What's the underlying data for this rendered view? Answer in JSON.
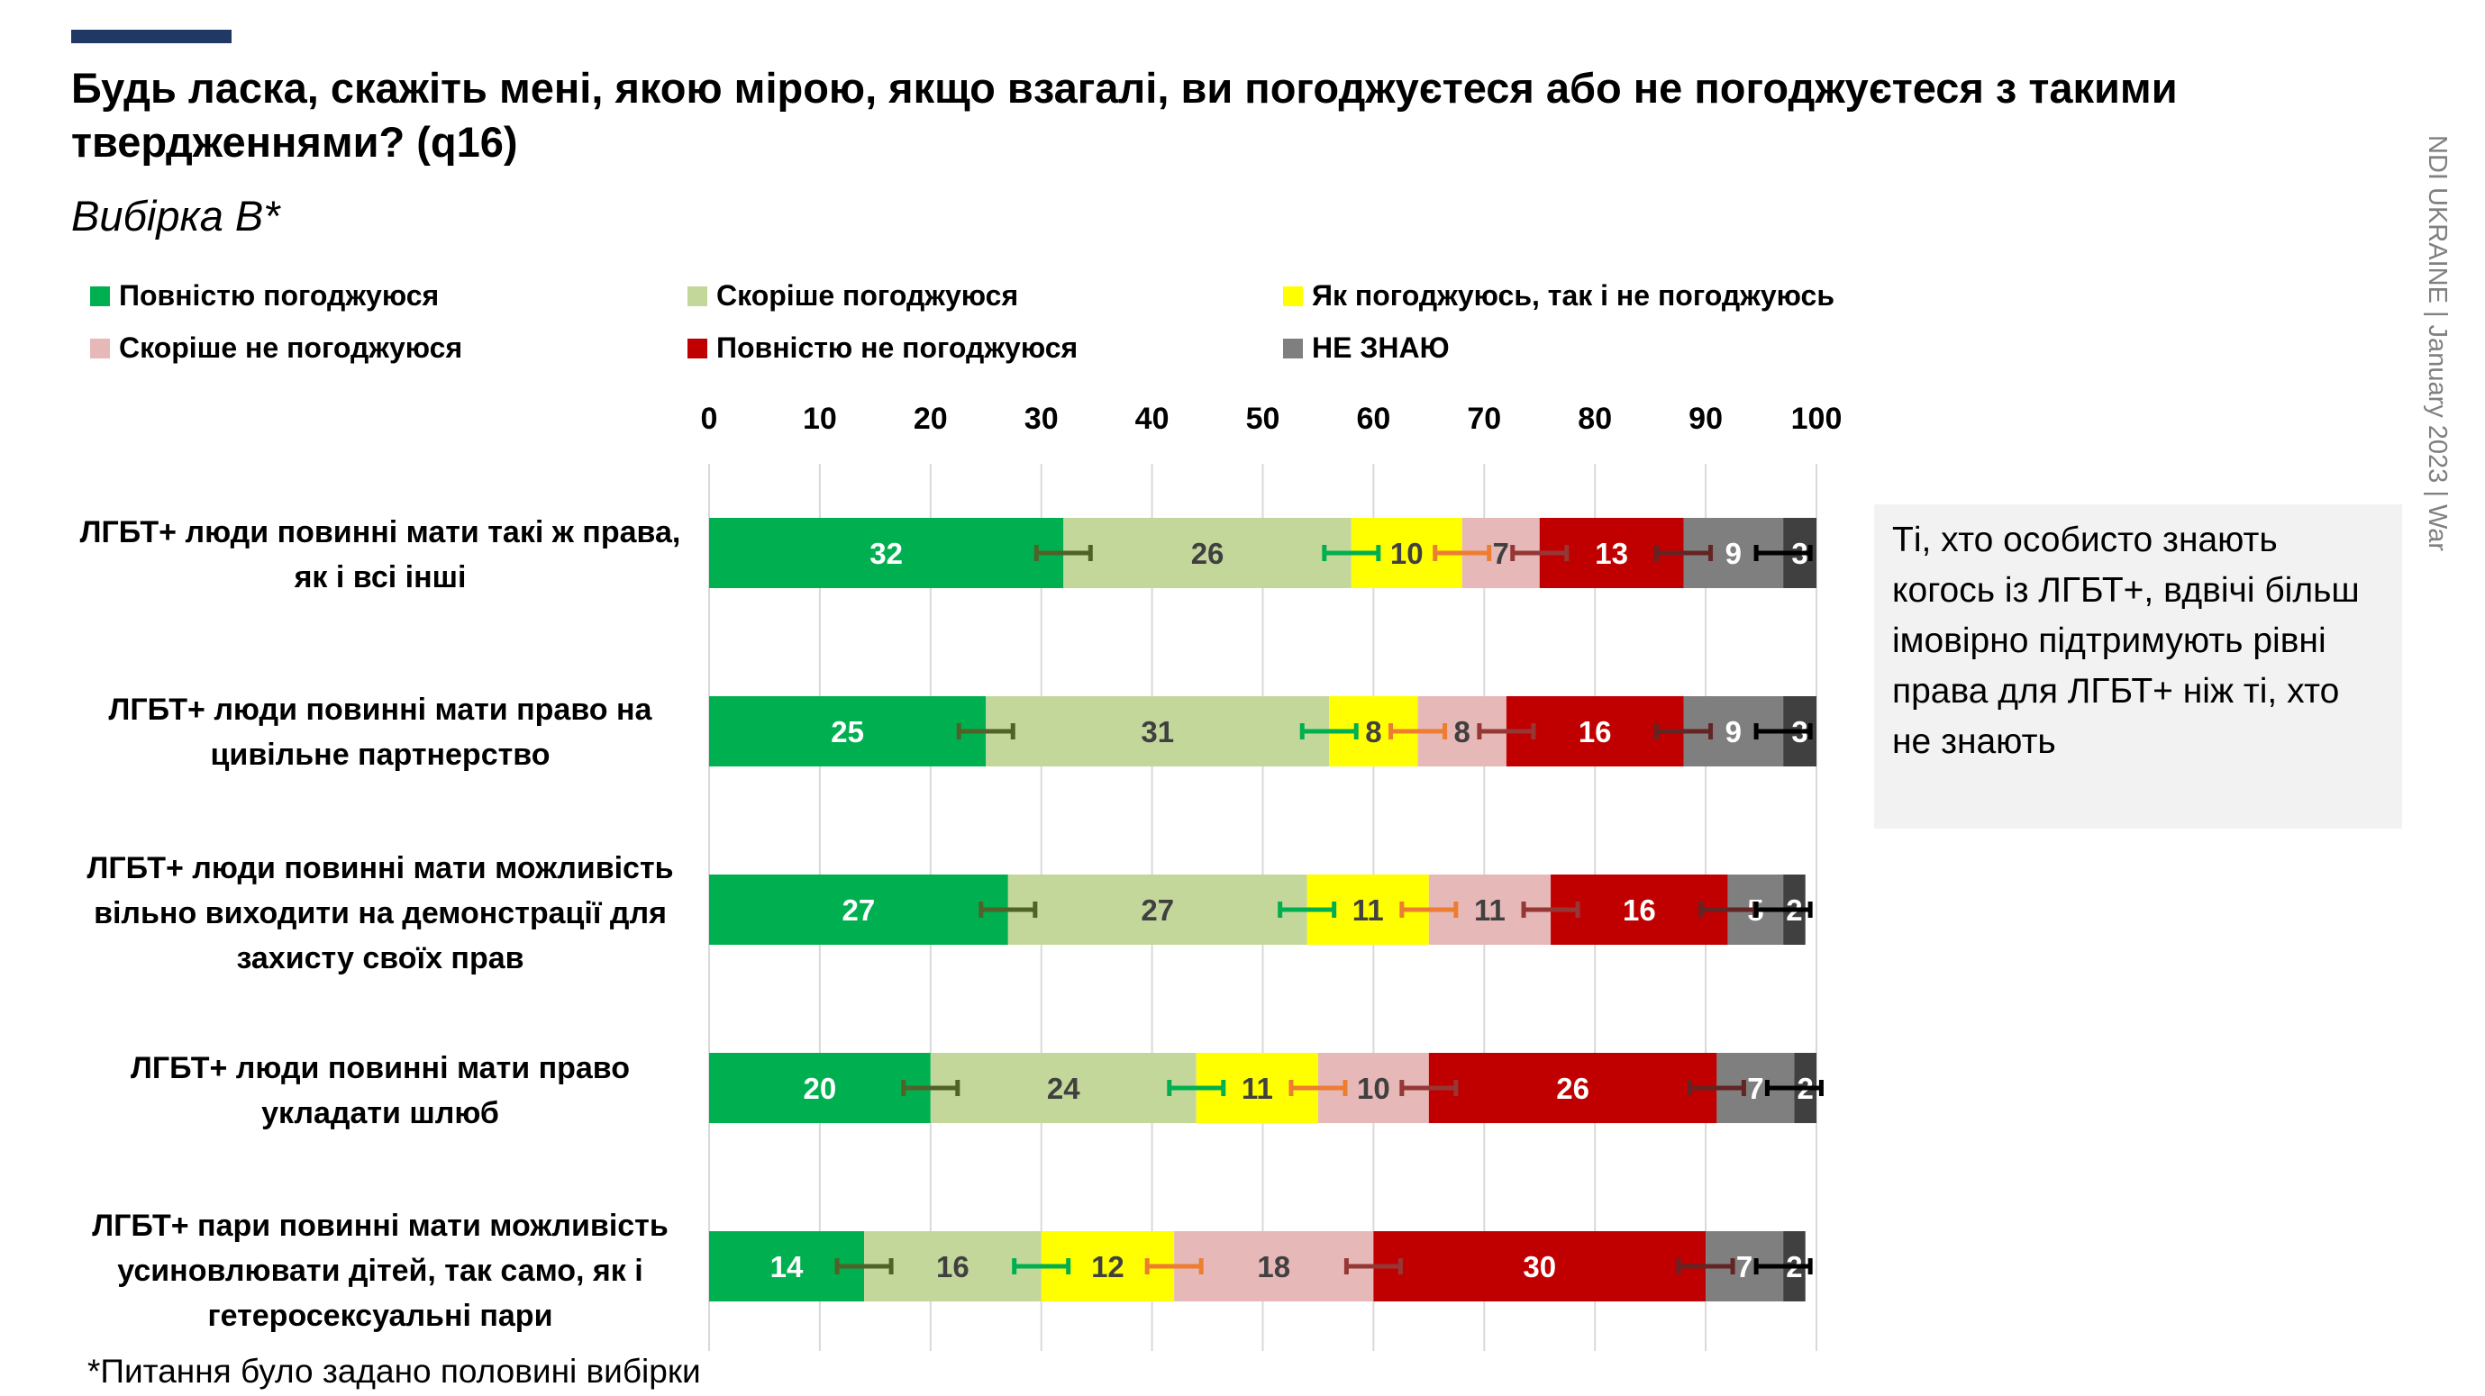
{
  "header": {
    "title": "Будь ласка, скажіть мені, якою мірою, якщо взагалі, ви погоджуєтеся або не погоджуєтеся з такими твердженнями? (q16)",
    "subtitle": "Вибірка B*"
  },
  "side_label": "NDI UKRAINE | January 2023 | War",
  "note": "Ті, хто особисто знають когось із ЛГБТ+, вдвічі більш імовірно підтримують рівні права для ЛГБТ+ ніж ті, хто не знають",
  "footnote": "*Питання було задано половині вибірки",
  "colors": {
    "strongly_agree": "#00b050",
    "somewhat_agree": "#c4d79b",
    "neutral": "#ffff00",
    "somewhat_disagree": "#e6b8b7",
    "strongly_disagree": "#c00000",
    "dont_know": "#7f7f7f",
    "remainder": "#404040",
    "note_background": "#f2f2f2",
    "top_bar": "#1f3864"
  },
  "chart_data": {
    "type": "bar",
    "orientation": "horizontal",
    "stacked": true,
    "xlim": [
      0,
      100
    ],
    "xticks": [
      "0",
      "10",
      "20",
      "30",
      "40",
      "50",
      "60",
      "70",
      "80",
      "90",
      "100"
    ],
    "grid": "vertical",
    "legend_position": "top",
    "error_bars": true,
    "categories": [
      "ЛГБТ+ люди повинні мати такі ж права, як і всі інші",
      "ЛГБТ+ люди повинні мати право на цивільне партнерство",
      "ЛГБТ+ люди повинні мати можливість вільно виходити на демонстрації для захисту своїх прав",
      "ЛГБТ+ люди повинні мати право укладати шлюб",
      "ЛГБТ+ пари повинні мати можливість усиновлювати дітей, так само, як і гетеросексуальні пари"
    ],
    "series": [
      {
        "name": "Повністю погоджуюся",
        "color": "#00b050",
        "label_color": "#ffffff",
        "error_color": "#4f6228",
        "values": [
          32,
          25,
          27,
          20,
          14
        ]
      },
      {
        "name": "Скоріше погоджуюся",
        "color": "#c4d79b",
        "label_color": "#404040",
        "error_color": "#00b050",
        "values": [
          26,
          31,
          27,
          24,
          16
        ]
      },
      {
        "name": "Як погоджуюсь, так і не погоджуюсь",
        "color": "#ffff00",
        "label_color": "#404040",
        "error_color": "#ed7d31",
        "values": [
          10,
          8,
          11,
          11,
          12
        ]
      },
      {
        "name": "Скоріше не погоджуюся",
        "color": "#e6b8b7",
        "label_color": "#404040",
        "error_color": "#953735",
        "values": [
          7,
          8,
          11,
          10,
          18
        ]
      },
      {
        "name": "Повністю не погоджуюся",
        "color": "#c00000",
        "label_color": "#ffffff",
        "error_color": "#632523",
        "values": [
          13,
          16,
          16,
          26,
          30
        ]
      },
      {
        "name": "НЕ ЗНАЮ",
        "color": "#7f7f7f",
        "label_color": "#ffffff",
        "error_color": "#000000",
        "values": [
          9,
          9,
          5,
          7,
          7
        ]
      },
      {
        "name": "",
        "color": "#404040",
        "label_color": "#ffffff",
        "error_color": null,
        "values": [
          3,
          3,
          2,
          2,
          2
        ]
      }
    ]
  }
}
